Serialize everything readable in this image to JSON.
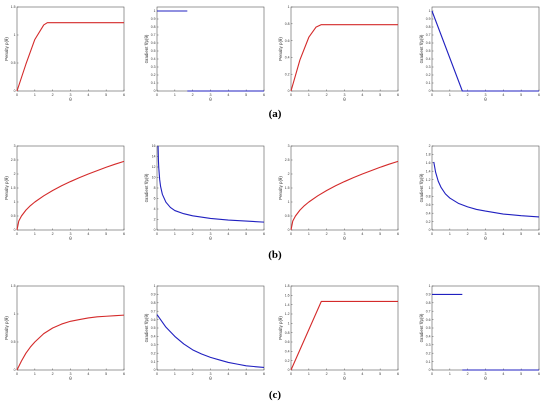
{
  "row_labels": [
    "(a)",
    "(b)",
    "(c)"
  ],
  "chart_data": [
    {
      "type": "line",
      "row": 0,
      "col": 0,
      "ylabel": "Penalty p(θ)",
      "xlabel": "θ",
      "color": "#d42a2a",
      "xlim": [
        0,
        6
      ],
      "ylim": [
        0,
        1.5
      ],
      "xticks": [
        0,
        1,
        2,
        3,
        4,
        5,
        6
      ],
      "yticks": [
        0,
        0.5,
        1,
        1.5
      ],
      "ytick_labels": [
        "0",
        "0.5",
        "1",
        "1.5"
      ],
      "x": [
        0,
        0.5,
        1,
        1.5,
        1.7,
        2,
        3,
        4,
        5,
        6
      ],
      "y": [
        0,
        0.48,
        0.92,
        1.18,
        1.22,
        1.22,
        1.22,
        1.22,
        1.22,
        1.22
      ]
    },
    {
      "type": "line",
      "row": 0,
      "col": 1,
      "ylabel": "Gradient ∇p(θ)",
      "xlabel": "θ",
      "color": "#2020c0",
      "xlim": [
        0,
        6
      ],
      "ylim": [
        0,
        1.05
      ],
      "xticks": [
        0,
        1,
        2,
        3,
        4,
        5,
        6
      ],
      "yticks": [
        0,
        0.1,
        0.2,
        0.3,
        0.4,
        0.5,
        0.6,
        0.7,
        0.8,
        0.9,
        1
      ],
      "ytick_labels": [
        "0",
        "0.1",
        "0.2",
        "0.3",
        "0.4",
        "0.5",
        "0.6",
        "0.7",
        "0.8",
        "0.9",
        "1"
      ],
      "segments": [
        {
          "x": [
            0,
            1.7
          ],
          "y": [
            1,
            1
          ]
        },
        {
          "x": [
            1.7,
            6
          ],
          "y": [
            0,
            0
          ]
        }
      ]
    },
    {
      "type": "line",
      "row": 0,
      "col": 2,
      "ylabel": "Penalty p(θ)",
      "xlabel": "θ",
      "color": "#d42a2a",
      "xlim": [
        0,
        6
      ],
      "ylim": [
        0,
        1
      ],
      "xticks": [
        0,
        1,
        2,
        3,
        4,
        5,
        6
      ],
      "yticks": [
        0,
        0.2,
        0.4,
        0.6,
        0.8,
        1
      ],
      "ytick_labels": [
        "0",
        "0.2",
        "0.4",
        "0.6",
        "0.8",
        "1"
      ],
      "x": [
        0,
        0.5,
        1,
        1.4,
        1.7,
        2,
        3,
        4,
        5,
        6
      ],
      "y": [
        0,
        0.37,
        0.64,
        0.76,
        0.79,
        0.79,
        0.79,
        0.79,
        0.79,
        0.79
      ]
    },
    {
      "type": "line",
      "row": 0,
      "col": 3,
      "ylabel": "Gradient ∇p(θ)",
      "xlabel": "θ",
      "color": "#2020c0",
      "xlim": [
        0,
        6
      ],
      "ylim": [
        0,
        1.05
      ],
      "xticks": [
        0,
        1,
        2,
        3,
        4,
        5,
        6
      ],
      "yticks": [
        0,
        0.1,
        0.2,
        0.3,
        0.4,
        0.5,
        0.6,
        0.7,
        0.8,
        0.9,
        1
      ],
      "ytick_labels": [
        "0",
        "0.1",
        "0.2",
        "0.3",
        "0.4",
        "0.5",
        "0.6",
        "0.7",
        "0.8",
        "0.9",
        "1"
      ],
      "x": [
        0,
        1.7,
        6
      ],
      "y": [
        1,
        0,
        0
      ]
    },
    {
      "type": "line",
      "row": 1,
      "col": 0,
      "ylabel": "Penalty p(θ)",
      "xlabel": "θ",
      "color": "#d42a2a",
      "xlim": [
        0,
        6
      ],
      "ylim": [
        0,
        3
      ],
      "xticks": [
        0,
        1,
        2,
        3,
        4,
        5,
        6
      ],
      "yticks": [
        0,
        0.5,
        1,
        1.5,
        2,
        2.5,
        3
      ],
      "ytick_labels": [
        "0",
        "0.5",
        "1",
        "1.5",
        "2",
        "2.5",
        "3"
      ],
      "x": [
        0,
        0.1,
        0.25,
        0.5,
        0.75,
        1,
        1.5,
        2,
        2.5,
        3,
        3.5,
        4,
        4.5,
        5,
        5.5,
        6
      ],
      "y": [
        0,
        0.32,
        0.5,
        0.71,
        0.87,
        1,
        1.22,
        1.41,
        1.58,
        1.73,
        1.87,
        2,
        2.12,
        2.24,
        2.35,
        2.45
      ]
    },
    {
      "type": "line",
      "row": 1,
      "col": 1,
      "ylabel": "Gradient ∇p(θ)",
      "xlabel": "θ",
      "color": "#2020c0",
      "xlim": [
        0,
        6
      ],
      "ylim": [
        0,
        16
      ],
      "xticks": [
        0,
        1,
        2,
        3,
        4,
        5,
        6
      ],
      "yticks": [
        0,
        2,
        4,
        6,
        8,
        10,
        12,
        14,
        16
      ],
      "ytick_labels": [
        "0",
        "2",
        "4",
        "6",
        "8",
        "10",
        "12",
        "14",
        "16"
      ],
      "x": [
        0.06,
        0.08,
        0.1,
        0.15,
        0.2,
        0.3,
        0.5,
        0.75,
        1,
        1.5,
        2,
        3,
        4,
        5,
        6
      ],
      "y": [
        16,
        13.2,
        11.8,
        9.6,
        8.3,
        6.8,
        5.3,
        4.3,
        3.7,
        3.1,
        2.7,
        2.2,
        1.9,
        1.7,
        1.5
      ]
    },
    {
      "type": "line",
      "row": 1,
      "col": 2,
      "ylabel": "Penalty p(θ)",
      "xlabel": "θ",
      "color": "#d42a2a",
      "xlim": [
        0,
        6
      ],
      "ylim": [
        0,
        3
      ],
      "xticks": [
        0,
        1,
        2,
        3,
        4,
        5,
        6
      ],
      "yticks": [
        0,
        0.5,
        1,
        1.5,
        2,
        2.5,
        3
      ],
      "ytick_labels": [
        "0",
        "0.5",
        "1",
        "1.5",
        "2",
        "2.5",
        "3"
      ],
      "x": [
        0,
        0.1,
        0.25,
        0.5,
        0.75,
        1,
        1.5,
        2,
        2.5,
        3,
        3.5,
        4,
        4.5,
        5,
        5.5,
        6
      ],
      "y": [
        0,
        0.32,
        0.5,
        0.71,
        0.87,
        1,
        1.22,
        1.41,
        1.58,
        1.73,
        1.87,
        2,
        2.12,
        2.24,
        2.35,
        2.45
      ]
    },
    {
      "type": "line",
      "row": 1,
      "col": 3,
      "ylabel": "Gradient ∇p(θ)",
      "xlabel": "θ",
      "color": "#2020c0",
      "xlim": [
        0,
        6
      ],
      "ylim": [
        0,
        2
      ],
      "xticks": [
        0,
        1,
        2,
        3,
        4,
        5,
        6
      ],
      "yticks": [
        0,
        0.2,
        0.4,
        0.6,
        0.8,
        1,
        1.2,
        1.4,
        1.6,
        1.8,
        2
      ],
      "ytick_labels": [
        "0",
        "0.2",
        "0.4",
        "0.6",
        "0.8",
        "1",
        "1.2",
        "1.4",
        "1.6",
        "1.8",
        "2"
      ],
      "x": [
        0.1,
        0.2,
        0.35,
        0.5,
        0.75,
        1,
        1.5,
        2,
        2.5,
        3,
        4,
        5,
        6
      ],
      "y": [
        1.62,
        1.38,
        1.16,
        1.02,
        0.86,
        0.76,
        0.63,
        0.55,
        0.49,
        0.45,
        0.38,
        0.34,
        0.31
      ]
    },
    {
      "type": "line",
      "row": 2,
      "col": 0,
      "ylabel": "Penalty p(θ)",
      "xlabel": "θ",
      "color": "#d42a2a",
      "xlim": [
        0,
        6
      ],
      "ylim": [
        0,
        1.5
      ],
      "xticks": [
        0,
        1,
        2,
        3,
        4,
        5,
        6
      ],
      "yticks": [
        0,
        0.5,
        1,
        1.5
      ],
      "ytick_labels": [
        "0",
        "0.5",
        "1",
        "1.5"
      ],
      "x": [
        0,
        0.25,
        0.5,
        0.75,
        1,
        1.5,
        2,
        2.5,
        3,
        3.5,
        4,
        4.5,
        5,
        5.5,
        6
      ],
      "y": [
        0,
        0.16,
        0.3,
        0.41,
        0.5,
        0.65,
        0.75,
        0.82,
        0.87,
        0.9,
        0.93,
        0.95,
        0.96,
        0.97,
        0.98
      ]
    },
    {
      "type": "line",
      "row": 2,
      "col": 1,
      "ylabel": "Gradient ∇p(θ)",
      "xlabel": "θ",
      "color": "#2020c0",
      "xlim": [
        0,
        6
      ],
      "ylim": [
        0,
        1
      ],
      "xticks": [
        0,
        1,
        2,
        3,
        4,
        5,
        6
      ],
      "yticks": [
        0,
        0.1,
        0.2,
        0.3,
        0.4,
        0.5,
        0.6,
        0.7,
        0.8,
        0.9,
        1
      ],
      "ytick_labels": [
        "0",
        "0.1",
        "0.2",
        "0.3",
        "0.4",
        "0.5",
        "0.6",
        "0.7",
        "0.8",
        "0.9",
        "1"
      ],
      "x": [
        0,
        0.5,
        1,
        1.5,
        2,
        2.5,
        3,
        3.5,
        4,
        4.5,
        5,
        5.5,
        6
      ],
      "y": [
        0.66,
        0.51,
        0.4,
        0.31,
        0.24,
        0.19,
        0.15,
        0.12,
        0.09,
        0.07,
        0.05,
        0.04,
        0.03
      ]
    },
    {
      "type": "line",
      "row": 2,
      "col": 2,
      "ylabel": "Penalty p(θ)",
      "xlabel": "θ",
      "color": "#d42a2a",
      "xlim": [
        0,
        6
      ],
      "ylim": [
        0,
        1.8
      ],
      "xticks": [
        0,
        1,
        2,
        3,
        4,
        5,
        6
      ],
      "yticks": [
        0,
        0.2,
        0.4,
        0.6,
        0.8,
        1,
        1.2,
        1.4,
        1.6,
        1.8
      ],
      "ytick_labels": [
        "0",
        "0.2",
        "0.4",
        "0.6",
        "0.8",
        "1",
        "1.2",
        "1.4",
        "1.6",
        "1.8"
      ],
      "x": [
        0,
        1.7,
        2,
        3,
        4,
        5,
        6
      ],
      "y": [
        0,
        1.47,
        1.47,
        1.47,
        1.47,
        1.47,
        1.47
      ]
    },
    {
      "type": "line",
      "row": 2,
      "col": 3,
      "ylabel": "Gradient ∇p(θ)",
      "xlabel": "θ",
      "color": "#2020c0",
      "xlim": [
        0,
        6
      ],
      "ylim": [
        0,
        1
      ],
      "xticks": [
        0,
        1,
        2,
        3,
        4,
        5,
        6
      ],
      "yticks": [
        0,
        0.1,
        0.2,
        0.3,
        0.4,
        0.5,
        0.6,
        0.7,
        0.8,
        0.9,
        1
      ],
      "ytick_labels": [
        "0",
        "0.1",
        "0.2",
        "0.3",
        "0.4",
        "0.5",
        "0.6",
        "0.7",
        "0.8",
        "0.9",
        "1"
      ],
      "segments": [
        {
          "x": [
            0,
            1.7
          ],
          "y": [
            0.9,
            0.9
          ]
        },
        {
          "x": [
            1.7,
            6
          ],
          "y": [
            0,
            0
          ]
        }
      ]
    }
  ]
}
